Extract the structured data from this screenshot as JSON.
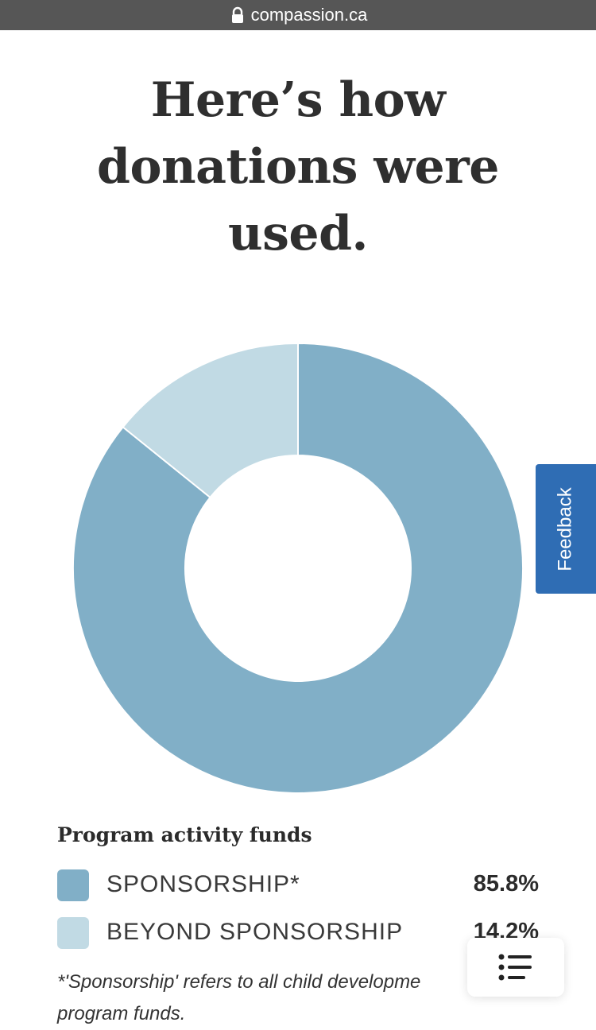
{
  "browser": {
    "url": "compassion.ca"
  },
  "heading": {
    "line1": "Here’s how",
    "line2": "donations were",
    "line3": "used."
  },
  "feedback": {
    "label": "Feedback"
  },
  "legend": {
    "title": "Program activity funds",
    "items": [
      {
        "label": "SPONSORSHIP*",
        "value": "85.8%",
        "color": "#81afc7"
      },
      {
        "label": "BEYOND SPONSORSHIP",
        "value": "14.2%",
        "color": "#c1dae4"
      }
    ]
  },
  "footnote": {
    "line1": "*'Sponsorship' refers to all child developme",
    "line2": "program funds."
  },
  "chart_data": {
    "type": "pie",
    "categories": [
      "SPONSORSHIP*",
      "BEYOND SPONSORSHIP"
    ],
    "values": [
      85.8,
      14.2
    ],
    "colors": [
      "#81afc7",
      "#c1dae4"
    ],
    "donut": true
  },
  "icons": {
    "lock": "lock-icon",
    "menu": "list-menu-icon"
  }
}
